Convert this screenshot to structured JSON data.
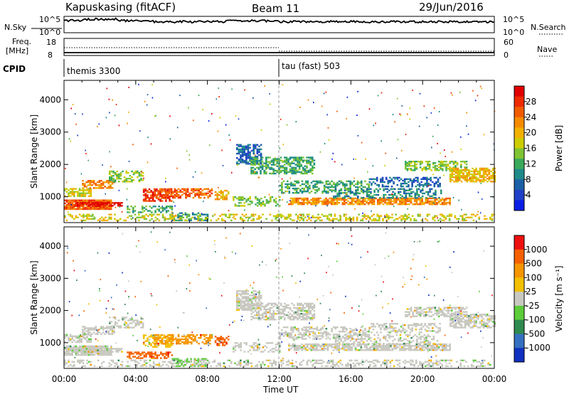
{
  "header": {
    "station": "Kapuskasing (fitACF)",
    "beam": "Beam 11",
    "date": "29/Jun/2016"
  },
  "nsky_panel": {
    "left_label": "N.Sky",
    "right_label": "N.Search",
    "tick_top": "10^5",
    "tick_bottom": "10^0",
    "rtick_top": "10^5",
    "rtick_bottom": "10^0"
  },
  "freq_panel": {
    "left_label_1": "Freq.",
    "left_label_2": "[MHz]",
    "tick_top": "18",
    "tick_bottom": "8",
    "rtick_top": "60",
    "rtick_bottom": "0",
    "right_label": "Nave"
  },
  "cpid": {
    "label": "CPID",
    "mode_1": "themis 3300",
    "mode_2": "tau (fast) 503",
    "switch_hour": 12
  },
  "chart_data": [
    {
      "type": "heatmap",
      "name": "Power panel",
      "ylabel": "Slant Range [km]",
      "xlabel": "",
      "ylim": [
        200,
        4600
      ],
      "y_ticks": [
        "1000",
        "2000",
        "3000",
        "4000"
      ],
      "x_range_hours": [
        0,
        24
      ],
      "colorbar": {
        "label": "Power [dB]",
        "ticks": [
          "4",
          "8",
          "12",
          "16",
          "20",
          "24",
          "28"
        ],
        "colors": [
          "#0a1ee6",
          "#2040c8",
          "#1b5fa6",
          "#1f8a8a",
          "#3aaa5a",
          "#7fc434",
          "#cccc00",
          "#f2b000",
          "#f58a00",
          "#f25a00",
          "#ee2a00",
          "#e00000"
        ]
      }
    },
    {
      "type": "heatmap",
      "name": "Velocity panel",
      "ylabel": "Slant Range [km]",
      "xlabel": "Time UT",
      "ylim": [
        200,
        4600
      ],
      "y_ticks": [
        "1000",
        "2000",
        "3000",
        "4000"
      ],
      "x_ticks": [
        "00:00",
        "04:00",
        "08:00",
        "12:00",
        "16:00",
        "20:00",
        "00:00"
      ],
      "x_range_hours": [
        0,
        24
      ],
      "colorbar": {
        "label": "Velocity [m s⁻¹]",
        "ticks": [
          "1000",
          "500",
          "100",
          "25",
          "-25",
          "-100",
          "-500",
          "-1000"
        ],
        "colors": [
          "#1030c0",
          "#3570c0",
          "#2f8a4f",
          "#5ccc3a",
          "#c8c8c0",
          "#f2c000",
          "#f59500",
          "#f56000",
          "#ee1010"
        ]
      }
    }
  ]
}
